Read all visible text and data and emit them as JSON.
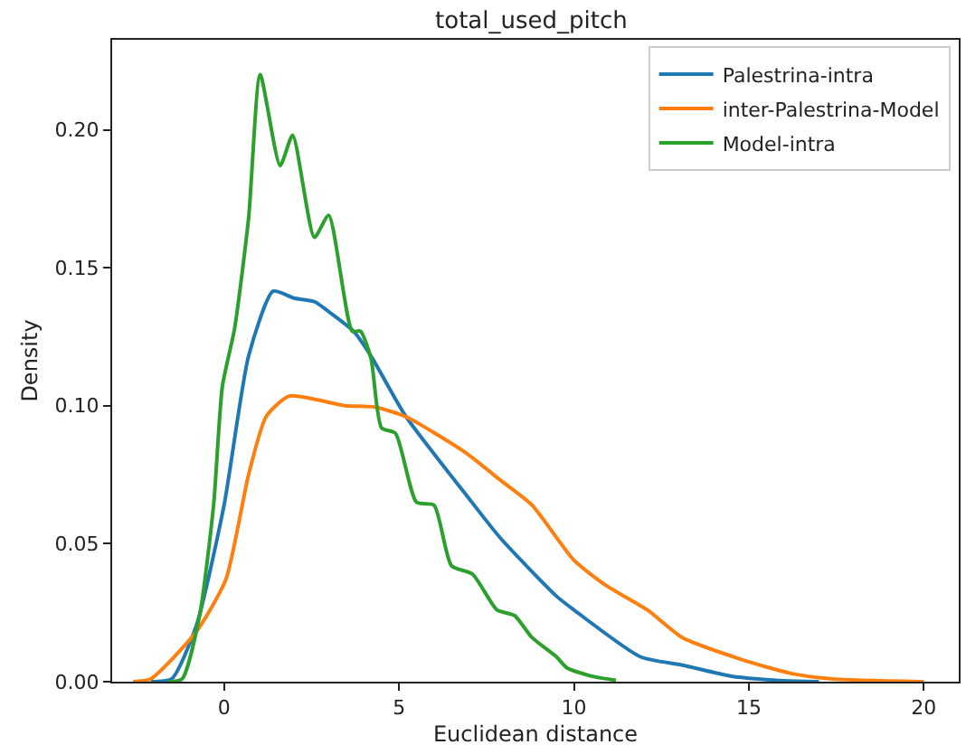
{
  "chart_data": {
    "type": "line",
    "title": "total_used_pitch",
    "xlabel": "Euclidean distance",
    "ylabel": "Density",
    "xlim": [
      -3.2,
      21.0
    ],
    "ylim": [
      0,
      0.2326
    ],
    "xticks": [
      0,
      5,
      10,
      15,
      20
    ],
    "yticks": [
      {
        "value": 0,
        "label": "0.00"
      },
      0.05,
      {
        "value": 0.1,
        "label": "0.10"
      },
      0.15,
      {
        "value": 0.2,
        "label": "0.20"
      }
    ],
    "legend": "top right",
    "marker": "none",
    "line_style": "solid",
    "series": [
      {
        "name": "Palestrina-intra",
        "color": "#1f77b4",
        "x": [
          -2.1,
          -1.5,
          -0.8,
          0,
          0.7,
          1.4,
          2.0,
          2.6,
          3.0,
          3.7,
          4.2,
          5.2,
          6.9,
          7.9,
          9.5,
          10,
          11.9,
          13.1,
          14.5,
          16,
          17
        ],
        "values": [
          0,
          0.001,
          0.02,
          0.064,
          0.118,
          0.1415,
          0.139,
          0.1376,
          0.134,
          0.127,
          0.118,
          0.096,
          0.068,
          0.052,
          0.031,
          0.026,
          0.009,
          0.006,
          0.002,
          0.0003,
          0
        ]
      },
      {
        "name": "inter-Palestrina-Model",
        "color": "#ff7f0e",
        "x": [
          -2.6,
          -2.1,
          -0.8,
          0.05,
          0.7,
          1.2,
          1.86,
          3.45,
          4.3,
          5.2,
          6.9,
          7.9,
          8.8,
          10,
          10.9,
          12.1,
          13.1,
          14.8,
          16.2,
          17.4,
          20
        ],
        "values": [
          0,
          0.001,
          0.018,
          0.037,
          0.075,
          0.096,
          0.1035,
          0.1,
          0.0995,
          0.096,
          0.083,
          0.073,
          0.064,
          0.044,
          0.035,
          0.026,
          0.016,
          0.008,
          0.003,
          0.001,
          0
        ]
      },
      {
        "name": "Model-intra",
        "color": "#2ca02c",
        "x": [
          -1.6,
          -1.2,
          -0.7,
          -0.3,
          -0.05,
          0.3,
          0.7,
          1.03,
          1.6,
          1.96,
          2.58,
          2.99,
          3.66,
          3.9,
          4.2,
          4.5,
          4.9,
          5.5,
          6.0,
          6.5,
          7.1,
          7.8,
          8.3,
          8.8,
          9.5,
          9.8,
          10.5,
          11.2
        ],
        "values": [
          0,
          0.001,
          0.024,
          0.064,
          0.107,
          0.128,
          0.168,
          0.22,
          0.187,
          0.198,
          0.161,
          0.169,
          0.127,
          0.127,
          0.117,
          0.092,
          0.09,
          0.065,
          0.064,
          0.042,
          0.039,
          0.026,
          0.024,
          0.016,
          0.009,
          0.005,
          0.002,
          0.0005
        ]
      }
    ]
  }
}
